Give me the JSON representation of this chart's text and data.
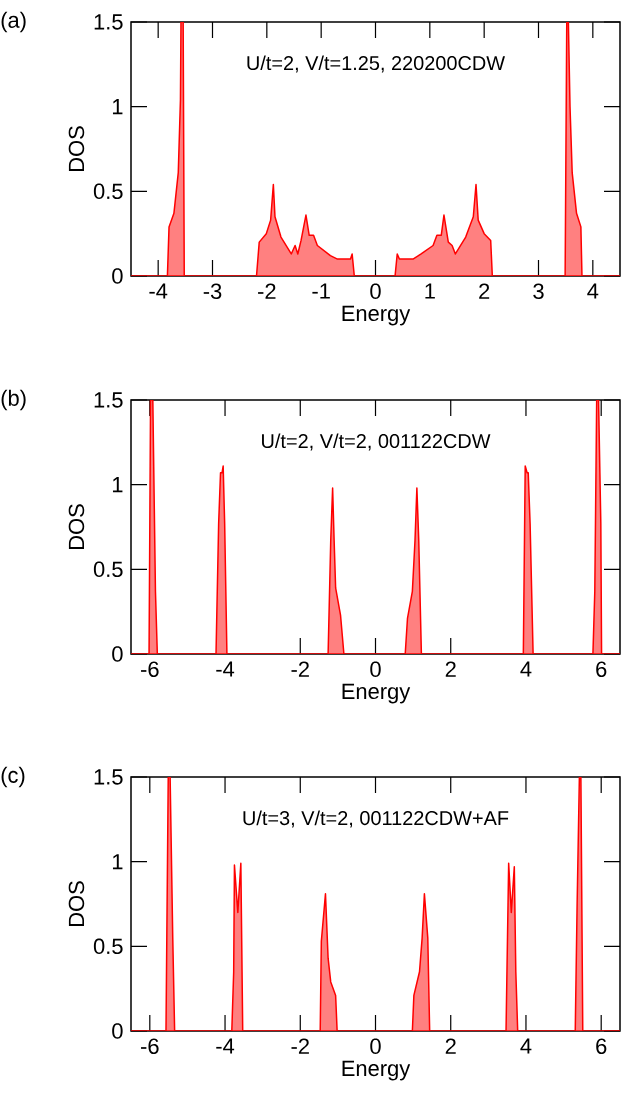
{
  "chart_data": [
    {
      "type": "area",
      "title": "(a)",
      "xlabel": "Energy",
      "ylabel": "DOS",
      "annotations": [
        "U/t=2, V/t=1.25, 220200CDW"
      ],
      "xlim": [
        -4.5,
        4.5
      ],
      "ylim": [
        0,
        1.5
      ],
      "xticks": [
        -4,
        -3,
        -2,
        -1,
        0,
        1,
        2,
        3,
        4
      ],
      "yticks": [
        0,
        0.5,
        1,
        1.5
      ],
      "series": [
        {
          "color": "#ff0000",
          "x": [
            -4.5,
            -3.83,
            -3.8,
            -3.71,
            -3.63,
            -3.59,
            -3.58,
            -3.54,
            -3.52,
            -2.19,
            -2.14,
            -2.01,
            -1.93,
            -1.88,
            -1.85,
            -1.74,
            -1.55,
            -1.48,
            -1.43,
            -1.37,
            -1.28,
            -1.22,
            -1.14,
            -1.07,
            -0.83,
            -0.7,
            -0.46,
            -0.43,
            -0.39,
            0.36,
            0.4,
            0.44,
            0.69,
            0.84,
            1.06,
            1.13,
            1.21,
            1.26,
            1.34,
            1.41,
            1.47,
            1.66,
            1.8,
            1.85,
            1.89,
            2.0,
            2.12,
            2.15,
            3.49,
            3.52,
            3.55,
            3.58,
            3.62,
            3.7,
            3.78,
            3.8,
            4.5
          ],
          "values": [
            0,
            0,
            0.29,
            0.37,
            0.61,
            1.04,
            1.5,
            1.5,
            0,
            0,
            0.2,
            0.25,
            0.33,
            0.54,
            0.35,
            0.23,
            0.13,
            0.18,
            0.13,
            0.21,
            0.36,
            0.24,
            0.24,
            0.18,
            0.12,
            0.1,
            0.1,
            0.13,
            0,
            0,
            0.13,
            0.1,
            0.1,
            0.13,
            0.18,
            0.24,
            0.24,
            0.36,
            0.2,
            0.18,
            0.13,
            0.23,
            0.35,
            0.54,
            0.33,
            0.25,
            0.21,
            0,
            0,
            1.5,
            1.5,
            1.0,
            0.61,
            0.37,
            0.29,
            0,
            0
          ]
        }
      ]
    },
    {
      "type": "area",
      "title": "(b)",
      "xlabel": "Energy",
      "ylabel": "DOS",
      "annotations": [
        "U/t=2, V/t=2, 001122CDW"
      ],
      "xlim": [
        -6.5,
        6.5
      ],
      "ylim": [
        0,
        1.5
      ],
      "xticks": [
        -6,
        -4,
        -2,
        0,
        2,
        4,
        6
      ],
      "yticks": [
        0,
        0.5,
        1,
        1.5
      ],
      "series": [
        {
          "color": "#ff0000",
          "x": [
            -6.5,
            -6.02,
            -5.98,
            -5.92,
            -5.85,
            -5.8,
            -4.24,
            -4.17,
            -4.12,
            -4.08,
            -4.05,
            -4.01,
            -3.95,
            -1.26,
            -1.19,
            -1.14,
            -1.1,
            -1.06,
            -0.93,
            -0.84,
            0.79,
            0.85,
            0.98,
            1.05,
            1.1,
            1.15,
            1.22,
            3.93,
            3.98,
            4.03,
            4.06,
            4.11,
            4.19,
            5.78,
            5.83,
            5.88,
            5.93,
            5.99,
            6.01,
            6.5
          ],
          "values": [
            0,
            0,
            1.5,
            1.5,
            0.37,
            0,
            0,
            0.77,
            1.07,
            1.07,
            1.11,
            0.77,
            0,
            0,
            0.67,
            0.98,
            0.67,
            0.39,
            0.23,
            0,
            0,
            0.21,
            0.37,
            0.67,
            0.98,
            0.67,
            0,
            0,
            1.11,
            1.07,
            1.07,
            0.77,
            0,
            0,
            0.37,
            1.5,
            1.5,
            0.77,
            0,
            0
          ]
        }
      ]
    },
    {
      "type": "area",
      "title": "(c)",
      "xlabel": "Energy",
      "ylabel": "DOS",
      "annotations": [
        "U/t=3, V/t=2, 001122CDW+AF"
      ],
      "xlim": [
        -6.5,
        6.5
      ],
      "ylim": [
        0,
        1.5
      ],
      "xticks": [
        -6,
        -4,
        -2,
        0,
        2,
        4,
        6
      ],
      "yticks": [
        0,
        0.5,
        1,
        1.5
      ],
      "series": [
        {
          "color": "#ff0000",
          "x": [
            -6.5,
            -5.57,
            -5.51,
            -5.46,
            -5.39,
            -5.34,
            -3.82,
            -3.77,
            -3.75,
            -3.66,
            -3.58,
            -3.53,
            -1.47,
            -1.44,
            -1.33,
            -1.26,
            -1.19,
            -1.06,
            -1.02,
            0.98,
            1.02,
            1.17,
            1.24,
            1.3,
            1.39,
            1.44,
            3.47,
            3.54,
            3.61,
            3.69,
            3.73,
            3.78,
            5.31,
            5.36,
            5.42,
            5.46,
            5.51,
            6.5
          ],
          "values": [
            0,
            0,
            1.5,
            1.5,
            0.55,
            0,
            0,
            0.35,
            0.98,
            0.7,
            0.99,
            0,
            0,
            0.53,
            0.81,
            0.43,
            0.29,
            0.21,
            0,
            0,
            0.21,
            0.35,
            0.55,
            0.81,
            0.55,
            0,
            0,
            0.99,
            0.7,
            0.97,
            0.35,
            0,
            0,
            0.75,
            1.5,
            1.5,
            0,
            0
          ]
        }
      ]
    }
  ]
}
